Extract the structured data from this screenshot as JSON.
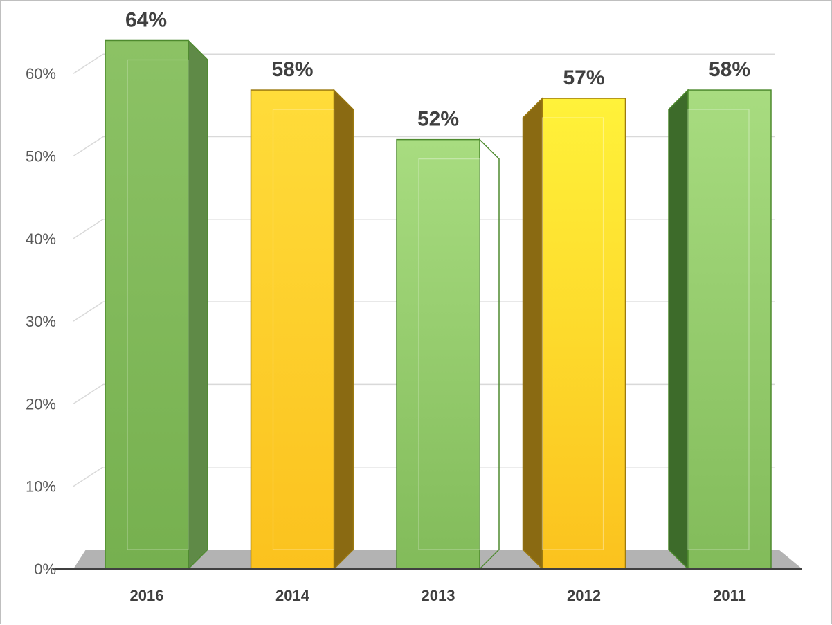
{
  "chart_data": {
    "type": "bar",
    "style": "3d-columns",
    "categories": [
      "2016",
      "2014",
      "2013",
      "2012",
      "2011"
    ],
    "values": [
      64,
      58,
      52,
      57,
      58
    ],
    "data_labels": [
      "64%",
      "58%",
      "52%",
      "57%",
      "58%"
    ],
    "ylim": [
      0,
      60
    ],
    "yticks": [
      "0%",
      "10%",
      "20%",
      "30%",
      "40%",
      "50%",
      "60%"
    ],
    "grid": true,
    "legend": "none",
    "colors": {
      "green_front": "#7fb85a",
      "green_dark_side": "#5e8a45",
      "yellow_front": "#ffc92e",
      "yellow_side": "#b58a14",
      "light_green_front": "#9fd676",
      "floor": "#b3b3b3"
    },
    "bar_colors": [
      "green",
      "yellow",
      "lightgreen",
      "yellow",
      "lightgreen"
    ]
  }
}
